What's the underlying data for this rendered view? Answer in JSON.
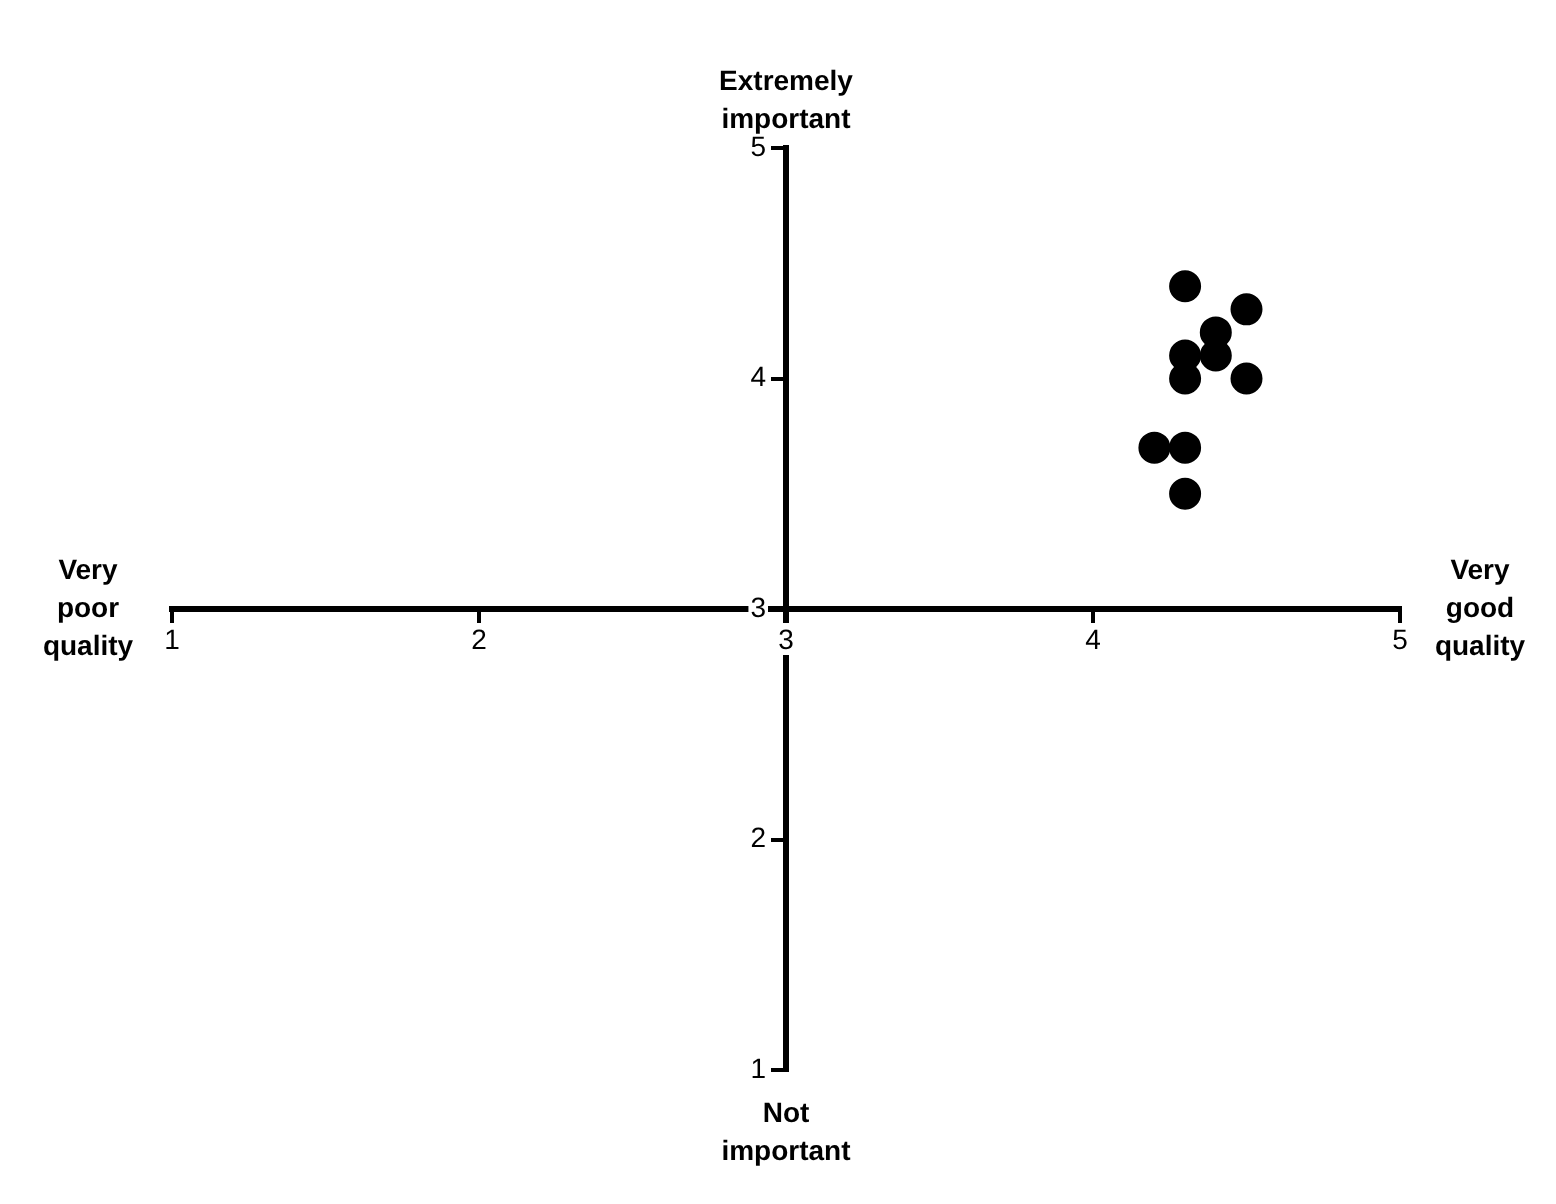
{
  "chart_data": {
    "type": "scatter",
    "annotations": [
      "Extremely important",
      "Not important",
      "Very poor quality",
      "Very good quality"
    ],
    "x": [
      4.3,
      4.5,
      4.4,
      4.4,
      4.3,
      4.3,
      4.5,
      4.2,
      4.3,
      4.3
    ],
    "values": [
      4.4,
      4.3,
      4.2,
      4.1,
      4.1,
      4.0,
      4.0,
      3.7,
      3.7,
      3.5
    ],
    "color": "#000000",
    "marker": "circle",
    "xlim": [
      1,
      5
    ],
    "ylim": [
      1,
      5
    ],
    "xticks": [
      1,
      2,
      3,
      4,
      5
    ],
    "yticks": [
      1,
      2,
      3,
      4,
      5
    ],
    "grid": false,
    "legend": false
  }
}
